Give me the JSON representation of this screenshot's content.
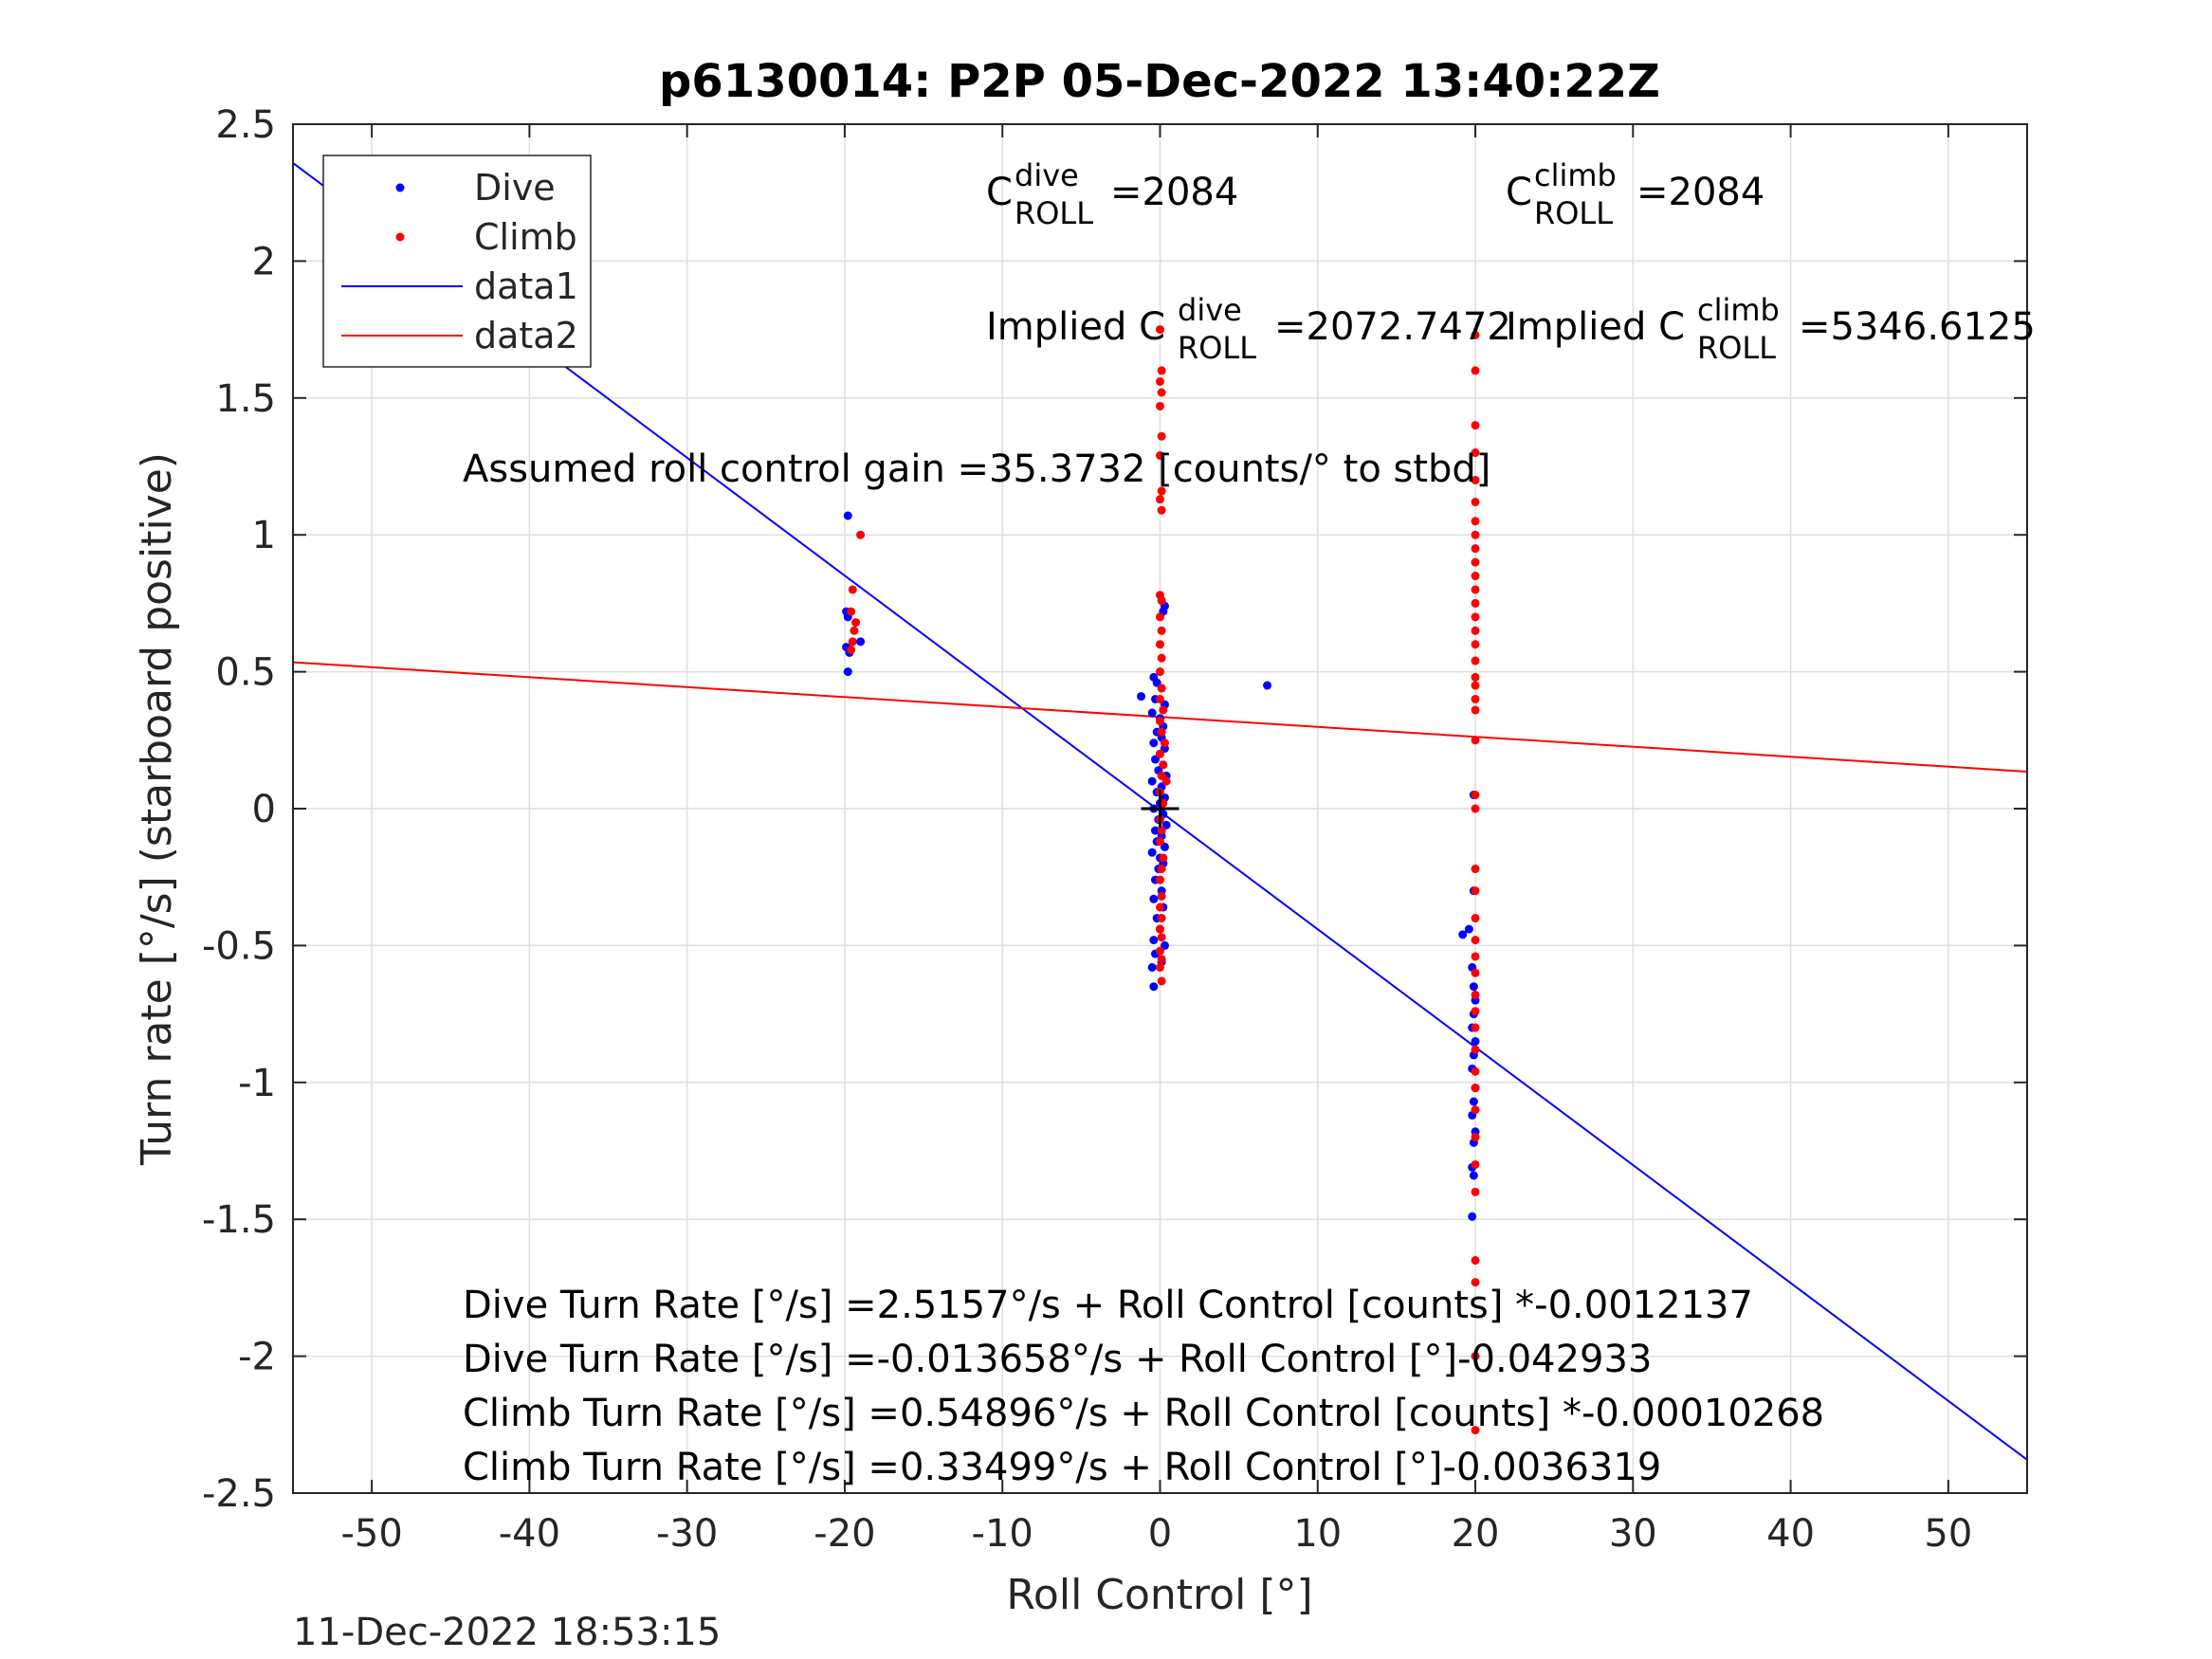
{
  "chart_data": {
    "type": "scatter",
    "title": "p6130014: P2P 05-Dec-2022 13:40:22Z",
    "xlabel": "Roll Control [°]",
    "ylabel": "Turn rate [°/s] (starboard positive)",
    "xlim": [
      -55,
      55
    ],
    "ylim": [
      -2.5,
      2.5
    ],
    "xticks": [
      -50,
      -40,
      -30,
      -20,
      -10,
      0,
      10,
      20,
      30,
      40,
      50
    ],
    "xtick_labels": [
      "-50",
      "-40",
      "-30",
      "-20",
      "-10",
      "0",
      "10",
      "20",
      "30",
      "40",
      "50"
    ],
    "yticks": [
      2.5,
      2,
      1.5,
      1,
      0.5,
      0,
      -0.5,
      -1,
      -1.5,
      -2,
      -2.5
    ],
    "ytick_labels": [
      "2.5",
      "2",
      "1.5",
      "1",
      "0.5",
      "0",
      "-0.5",
      "-1",
      "-1.5",
      "-2",
      "-2.5"
    ],
    "grid": true,
    "legend_position": "top-left",
    "legend": [
      {
        "label": "Dive",
        "kind": "dot",
        "color": "#0000ff"
      },
      {
        "label": "Climb",
        "kind": "dot",
        "color": "#ff0000"
      },
      {
        "label": "data1",
        "kind": "line",
        "color": "#0000ff"
      },
      {
        "label": "data2",
        "kind": "line",
        "color": "#ff0000"
      }
    ],
    "lines": [
      {
        "name": "data1",
        "color": "#0000ff",
        "x": [
          -55,
          55
        ],
        "y": [
          2.3583,
          -2.3783
        ]
      },
      {
        "name": "data2",
        "color": "#ff0000",
        "x": [
          -55,
          55
        ],
        "y": [
          0.5347,
          0.1352
        ]
      }
    ],
    "series": [
      {
        "name": "Dive",
        "color": "#0000ff",
        "points": [
          [
            -19.8,
            1.07
          ],
          [
            -19.9,
            0.72
          ],
          [
            -19.8,
            0.7
          ],
          [
            -19.9,
            0.59
          ],
          [
            -19.7,
            0.57
          ],
          [
            -19.8,
            0.5
          ],
          [
            -19.0,
            0.61
          ],
          [
            -1.2,
            0.41
          ],
          [
            6.8,
            0.45
          ],
          [
            -0.4,
            0.48
          ],
          [
            -0.2,
            0.46
          ],
          [
            0.1,
            0.44
          ],
          [
            -0.3,
            0.4
          ],
          [
            0.3,
            0.38
          ],
          [
            -0.5,
            0.35
          ],
          [
            0.0,
            0.33
          ],
          [
            0.2,
            0.3
          ],
          [
            -0.2,
            0.28
          ],
          [
            0.1,
            0.26
          ],
          [
            -0.4,
            0.24
          ],
          [
            0.3,
            0.22
          ],
          [
            0.0,
            0.2
          ],
          [
            -0.3,
            0.18
          ],
          [
            0.2,
            0.16
          ],
          [
            -0.1,
            0.14
          ],
          [
            0.4,
            0.12
          ],
          [
            -0.5,
            0.1
          ],
          [
            0.1,
            0.08
          ],
          [
            -0.2,
            0.06
          ],
          [
            0.3,
            0.04
          ],
          [
            0.0,
            0.02
          ],
          [
            -0.4,
            0.0
          ],
          [
            0.2,
            -0.02
          ],
          [
            -0.1,
            -0.04
          ],
          [
            0.4,
            -0.06
          ],
          [
            -0.3,
            -0.08
          ],
          [
            0.1,
            -0.1
          ],
          [
            -0.2,
            -0.12
          ],
          [
            0.3,
            -0.14
          ],
          [
            -0.5,
            -0.16
          ],
          [
            0.0,
            -0.18
          ],
          [
            0.2,
            -0.2
          ],
          [
            -0.1,
            -0.22
          ],
          [
            -0.3,
            -0.26
          ],
          [
            0.1,
            -0.3
          ],
          [
            -0.4,
            -0.33
          ],
          [
            0.2,
            -0.36
          ],
          [
            -0.2,
            -0.4
          ],
          [
            0.0,
            -0.44
          ],
          [
            -0.4,
            -0.48
          ],
          [
            0.3,
            -0.5
          ],
          [
            -0.3,
            -0.53
          ],
          [
            0.1,
            -0.56
          ],
          [
            -0.5,
            -0.58
          ],
          [
            -0.4,
            -0.65
          ],
          [
            0.2,
            0.72
          ],
          [
            0.3,
            0.74
          ],
          [
            19.2,
            -0.46
          ],
          [
            19.6,
            -0.44
          ],
          [
            19.9,
            -0.3
          ],
          [
            19.8,
            -0.58
          ],
          [
            19.9,
            -0.65
          ],
          [
            20.0,
            -0.7
          ],
          [
            19.9,
            -0.75
          ],
          [
            19.8,
            -0.8
          ],
          [
            20.0,
            -0.85
          ],
          [
            19.9,
            -0.9
          ],
          [
            19.8,
            -0.95
          ],
          [
            20.0,
            -1.02
          ],
          [
            19.9,
            -1.07
          ],
          [
            19.8,
            -1.12
          ],
          [
            20.0,
            -1.18
          ],
          [
            19.9,
            -1.22
          ],
          [
            19.8,
            -1.31
          ],
          [
            19.9,
            -1.34
          ],
          [
            19.8,
            -1.49
          ],
          [
            19.9,
            0.05
          ]
        ]
      },
      {
        "name": "Climb",
        "color": "#ff0000",
        "points": [
          [
            -19.0,
            1.0
          ],
          [
            -19.5,
            0.8
          ],
          [
            -19.6,
            0.72
          ],
          [
            -19.3,
            0.68
          ],
          [
            -19.4,
            0.65
          ],
          [
            -19.5,
            0.61
          ],
          [
            -19.6,
            0.58
          ],
          [
            0.0,
            1.75
          ],
          [
            0.1,
            1.6
          ],
          [
            0.0,
            1.56
          ],
          [
            0.1,
            1.52
          ],
          [
            0.0,
            1.47
          ],
          [
            0.1,
            1.36
          ],
          [
            0.0,
            1.29
          ],
          [
            0.1,
            1.16
          ],
          [
            0.0,
            1.13
          ],
          [
            0.1,
            1.09
          ],
          [
            0.0,
            0.78
          ],
          [
            0.1,
            0.76
          ],
          [
            0.0,
            0.7
          ],
          [
            0.1,
            0.65
          ],
          [
            0.0,
            0.6
          ],
          [
            0.1,
            0.55
          ],
          [
            0.0,
            0.5
          ],
          [
            0.1,
            0.44
          ],
          [
            0.0,
            0.4
          ],
          [
            0.2,
            0.36
          ],
          [
            0.0,
            0.32
          ],
          [
            0.1,
            0.28
          ],
          [
            0.3,
            0.24
          ],
          [
            0.0,
            0.2
          ],
          [
            0.2,
            0.16
          ],
          [
            0.1,
            0.12
          ],
          [
            0.4,
            0.1
          ],
          [
            0.0,
            0.06
          ],
          [
            0.2,
            0.02
          ],
          [
            0.0,
            -0.04
          ],
          [
            0.1,
            -0.08
          ],
          [
            0.0,
            -0.12
          ],
          [
            0.2,
            -0.18
          ],
          [
            0.1,
            -0.22
          ],
          [
            0.0,
            -0.26
          ],
          [
            0.1,
            -0.32
          ],
          [
            0.0,
            -0.36
          ],
          [
            0.1,
            -0.4
          ],
          [
            0.0,
            -0.44
          ],
          [
            0.1,
            -0.47
          ],
          [
            0.0,
            -0.52
          ],
          [
            0.1,
            -0.55
          ],
          [
            0.0,
            -0.58
          ],
          [
            0.1,
            -0.63
          ],
          [
            20.0,
            1.73
          ],
          [
            20.0,
            1.6
          ],
          [
            20.0,
            1.4
          ],
          [
            20.0,
            1.3
          ],
          [
            20.0,
            1.2
          ],
          [
            20.0,
            1.12
          ],
          [
            20.0,
            1.05
          ],
          [
            20.0,
            1.0
          ],
          [
            20.0,
            0.95
          ],
          [
            20.0,
            0.9
          ],
          [
            20.0,
            0.85
          ],
          [
            20.0,
            0.8
          ],
          [
            20.0,
            0.75
          ],
          [
            20.0,
            0.7
          ],
          [
            20.0,
            0.65
          ],
          [
            20.0,
            0.6
          ],
          [
            20.0,
            0.54
          ],
          [
            20.0,
            0.48
          ],
          [
            20.0,
            0.45
          ],
          [
            20.0,
            0.4
          ],
          [
            20.0,
            0.36
          ],
          [
            20.0,
            0.25
          ],
          [
            20.0,
            0.05
          ],
          [
            20.0,
            0.0
          ],
          [
            20.0,
            -0.22
          ],
          [
            20.0,
            -0.3
          ],
          [
            20.0,
            -0.4
          ],
          [
            20.0,
            -0.48
          ],
          [
            20.0,
            -0.54
          ],
          [
            20.0,
            -0.6
          ],
          [
            20.0,
            -0.68
          ],
          [
            20.0,
            -0.74
          ],
          [
            20.0,
            -0.8
          ],
          [
            20.0,
            -0.88
          ],
          [
            20.0,
            -0.96
          ],
          [
            20.0,
            -1.02
          ],
          [
            20.0,
            -1.1
          ],
          [
            20.0,
            -1.2
          ],
          [
            20.0,
            -1.3
          ],
          [
            20.0,
            -1.4
          ],
          [
            20.0,
            -1.65
          ],
          [
            20.0,
            -1.73
          ],
          [
            20.0,
            -2.0
          ],
          [
            20.0,
            -2.27
          ]
        ]
      }
    ],
    "origin_marker": {
      "x": 0,
      "y": 0,
      "color": "#000000"
    },
    "annotations": {
      "c_dive_prefix": "C",
      "c_dive_sup": "dive",
      "c_dive_sub": "ROLL",
      "c_dive_value": "=2084",
      "c_climb_prefix": "C",
      "c_climb_sup": "climb",
      "c_climb_sub": "ROLL",
      "c_climb_value": "=2084",
      "implied_dive_prefix": "Implied C",
      "implied_dive_sup": "dive",
      "implied_dive_sub": "ROLL",
      "implied_dive_value": "=2072.7472",
      "implied_climb_prefix": "Implied C",
      "implied_climb_sup": "climb",
      "implied_climb_sub": "ROLL",
      "implied_climb_value": "=5346.6125",
      "gain": "Assumed roll control gain =35.3732 [counts/° to stbd]",
      "eq1": "Dive Turn Rate [°/s] =2.5157°/s + Roll Control [counts] *-0.0012137",
      "eq2": "Dive Turn Rate [°/s] =-0.013658°/s + Roll Control [°]-0.042933",
      "eq3": "Climb Turn Rate [°/s] =0.54896°/s + Roll Control [counts] *-0.00010268",
      "eq4": "Climb Turn Rate [°/s] =0.33499°/s + Roll Control [°]-0.0036319"
    },
    "timestamp": "11-Dec-2022 18:53:15"
  }
}
